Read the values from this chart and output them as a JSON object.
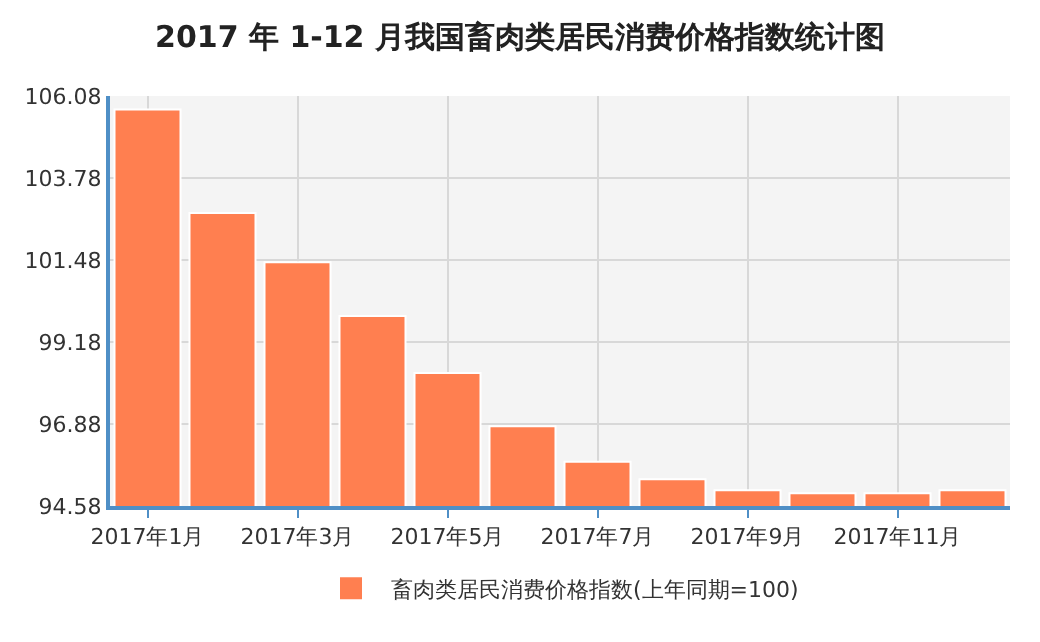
{
  "chart_data": {
    "type": "bar",
    "title": "2017 年 1-12 月我国畜肉类居民消费价格指数统计图",
    "categories": [
      "2017年1月",
      null,
      "2017年3月",
      null,
      "2017年5月",
      null,
      "2017年7月",
      null,
      "2017年9月",
      null,
      "2017年11月",
      null
    ],
    "series": [
      {
        "name": "畜肉类居民消费价格指数(上年同期=100)",
        "color": "#ff7f50",
        "values": [
          105.7,
          102.8,
          101.42,
          99.91,
          98.31,
          96.82,
          95.82,
          95.33,
          95.02,
          94.94,
          94.94,
          95.02
        ]
      }
    ],
    "ylim": [
      94.58,
      106.08
    ],
    "yticks": [
      94.58,
      96.88,
      99.18,
      101.48,
      103.78,
      106.08
    ],
    "grid": true,
    "legend": "bottom"
  }
}
